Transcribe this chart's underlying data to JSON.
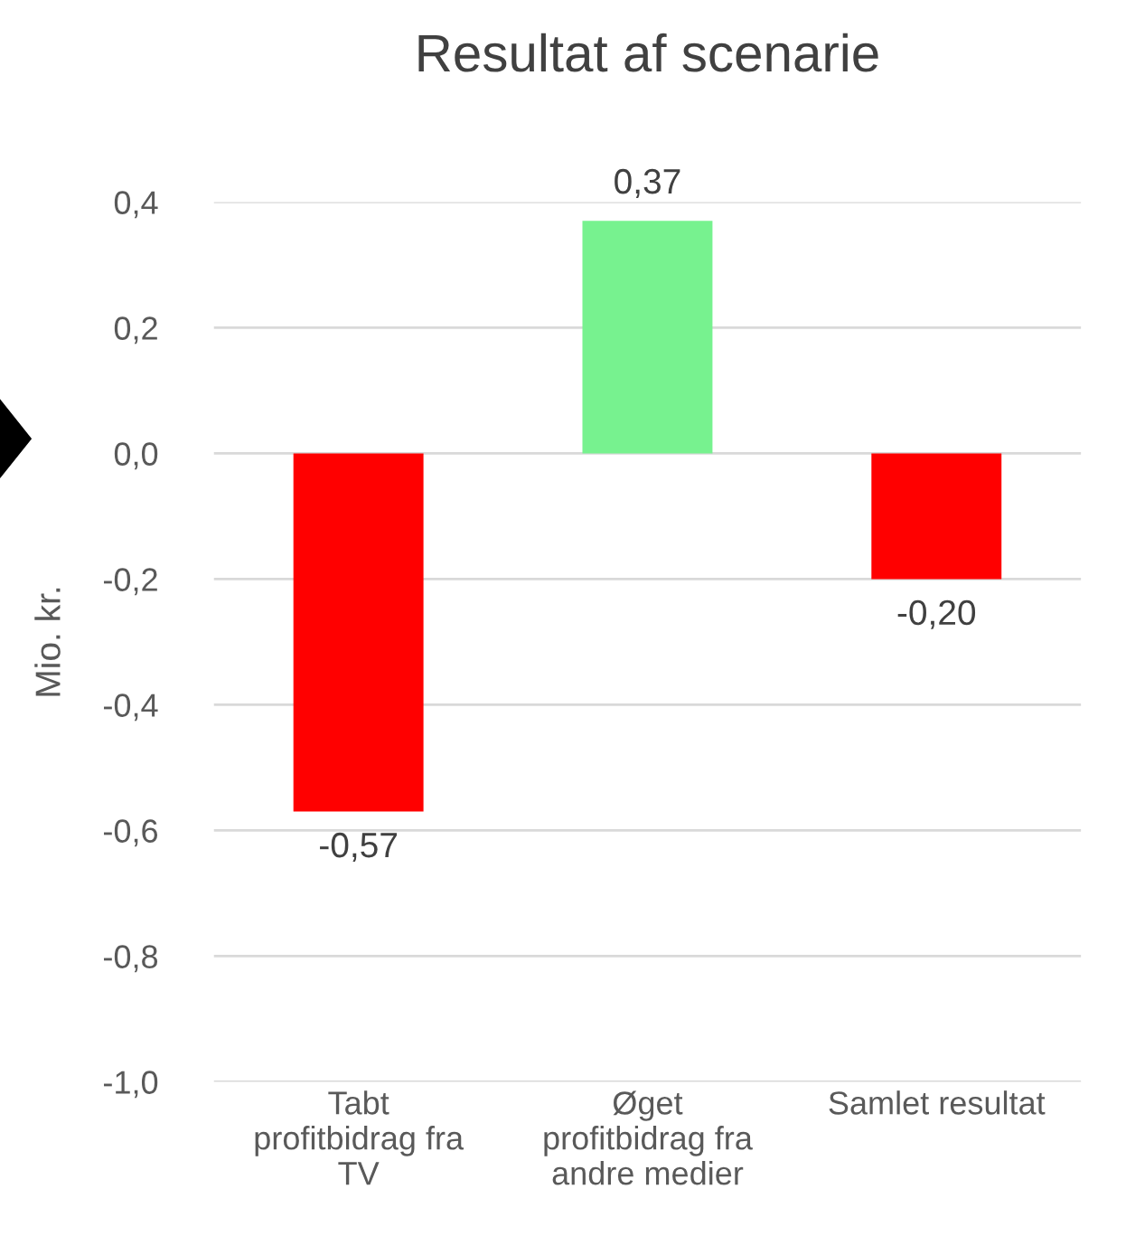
{
  "chart_data": {
    "type": "bar",
    "title": "Resultat af scenarie",
    "ylabel": "Mio. kr.",
    "categories": [
      "Tabt\nprofitbidrag fra\nTV",
      "Øget\nprofitbidrag fra\nandre medier",
      "Samlet resultat"
    ],
    "values": [
      -0.57,
      0.37,
      -0.2
    ],
    "colors": [
      "#ff0000",
      "#77f28f",
      "#ff0000"
    ],
    "value_labels": [
      "-0,57",
      "0,37",
      "-0,20"
    ],
    "ylim": [
      -1.0,
      0.4
    ],
    "yticks": [
      {
        "value": -1.0,
        "label": "-1,0"
      },
      {
        "value": -0.8,
        "label": "-0,8"
      },
      {
        "value": -0.6,
        "label": "-0,6"
      },
      {
        "value": -0.4,
        "label": "-0,4"
      },
      {
        "value": -0.2,
        "label": "-0,2"
      },
      {
        "value": 0.0,
        "label": "0,0"
      },
      {
        "value": 0.2,
        "label": "0,2"
      },
      {
        "value": 0.4,
        "label": "0,4"
      }
    ],
    "grid": "y"
  }
}
